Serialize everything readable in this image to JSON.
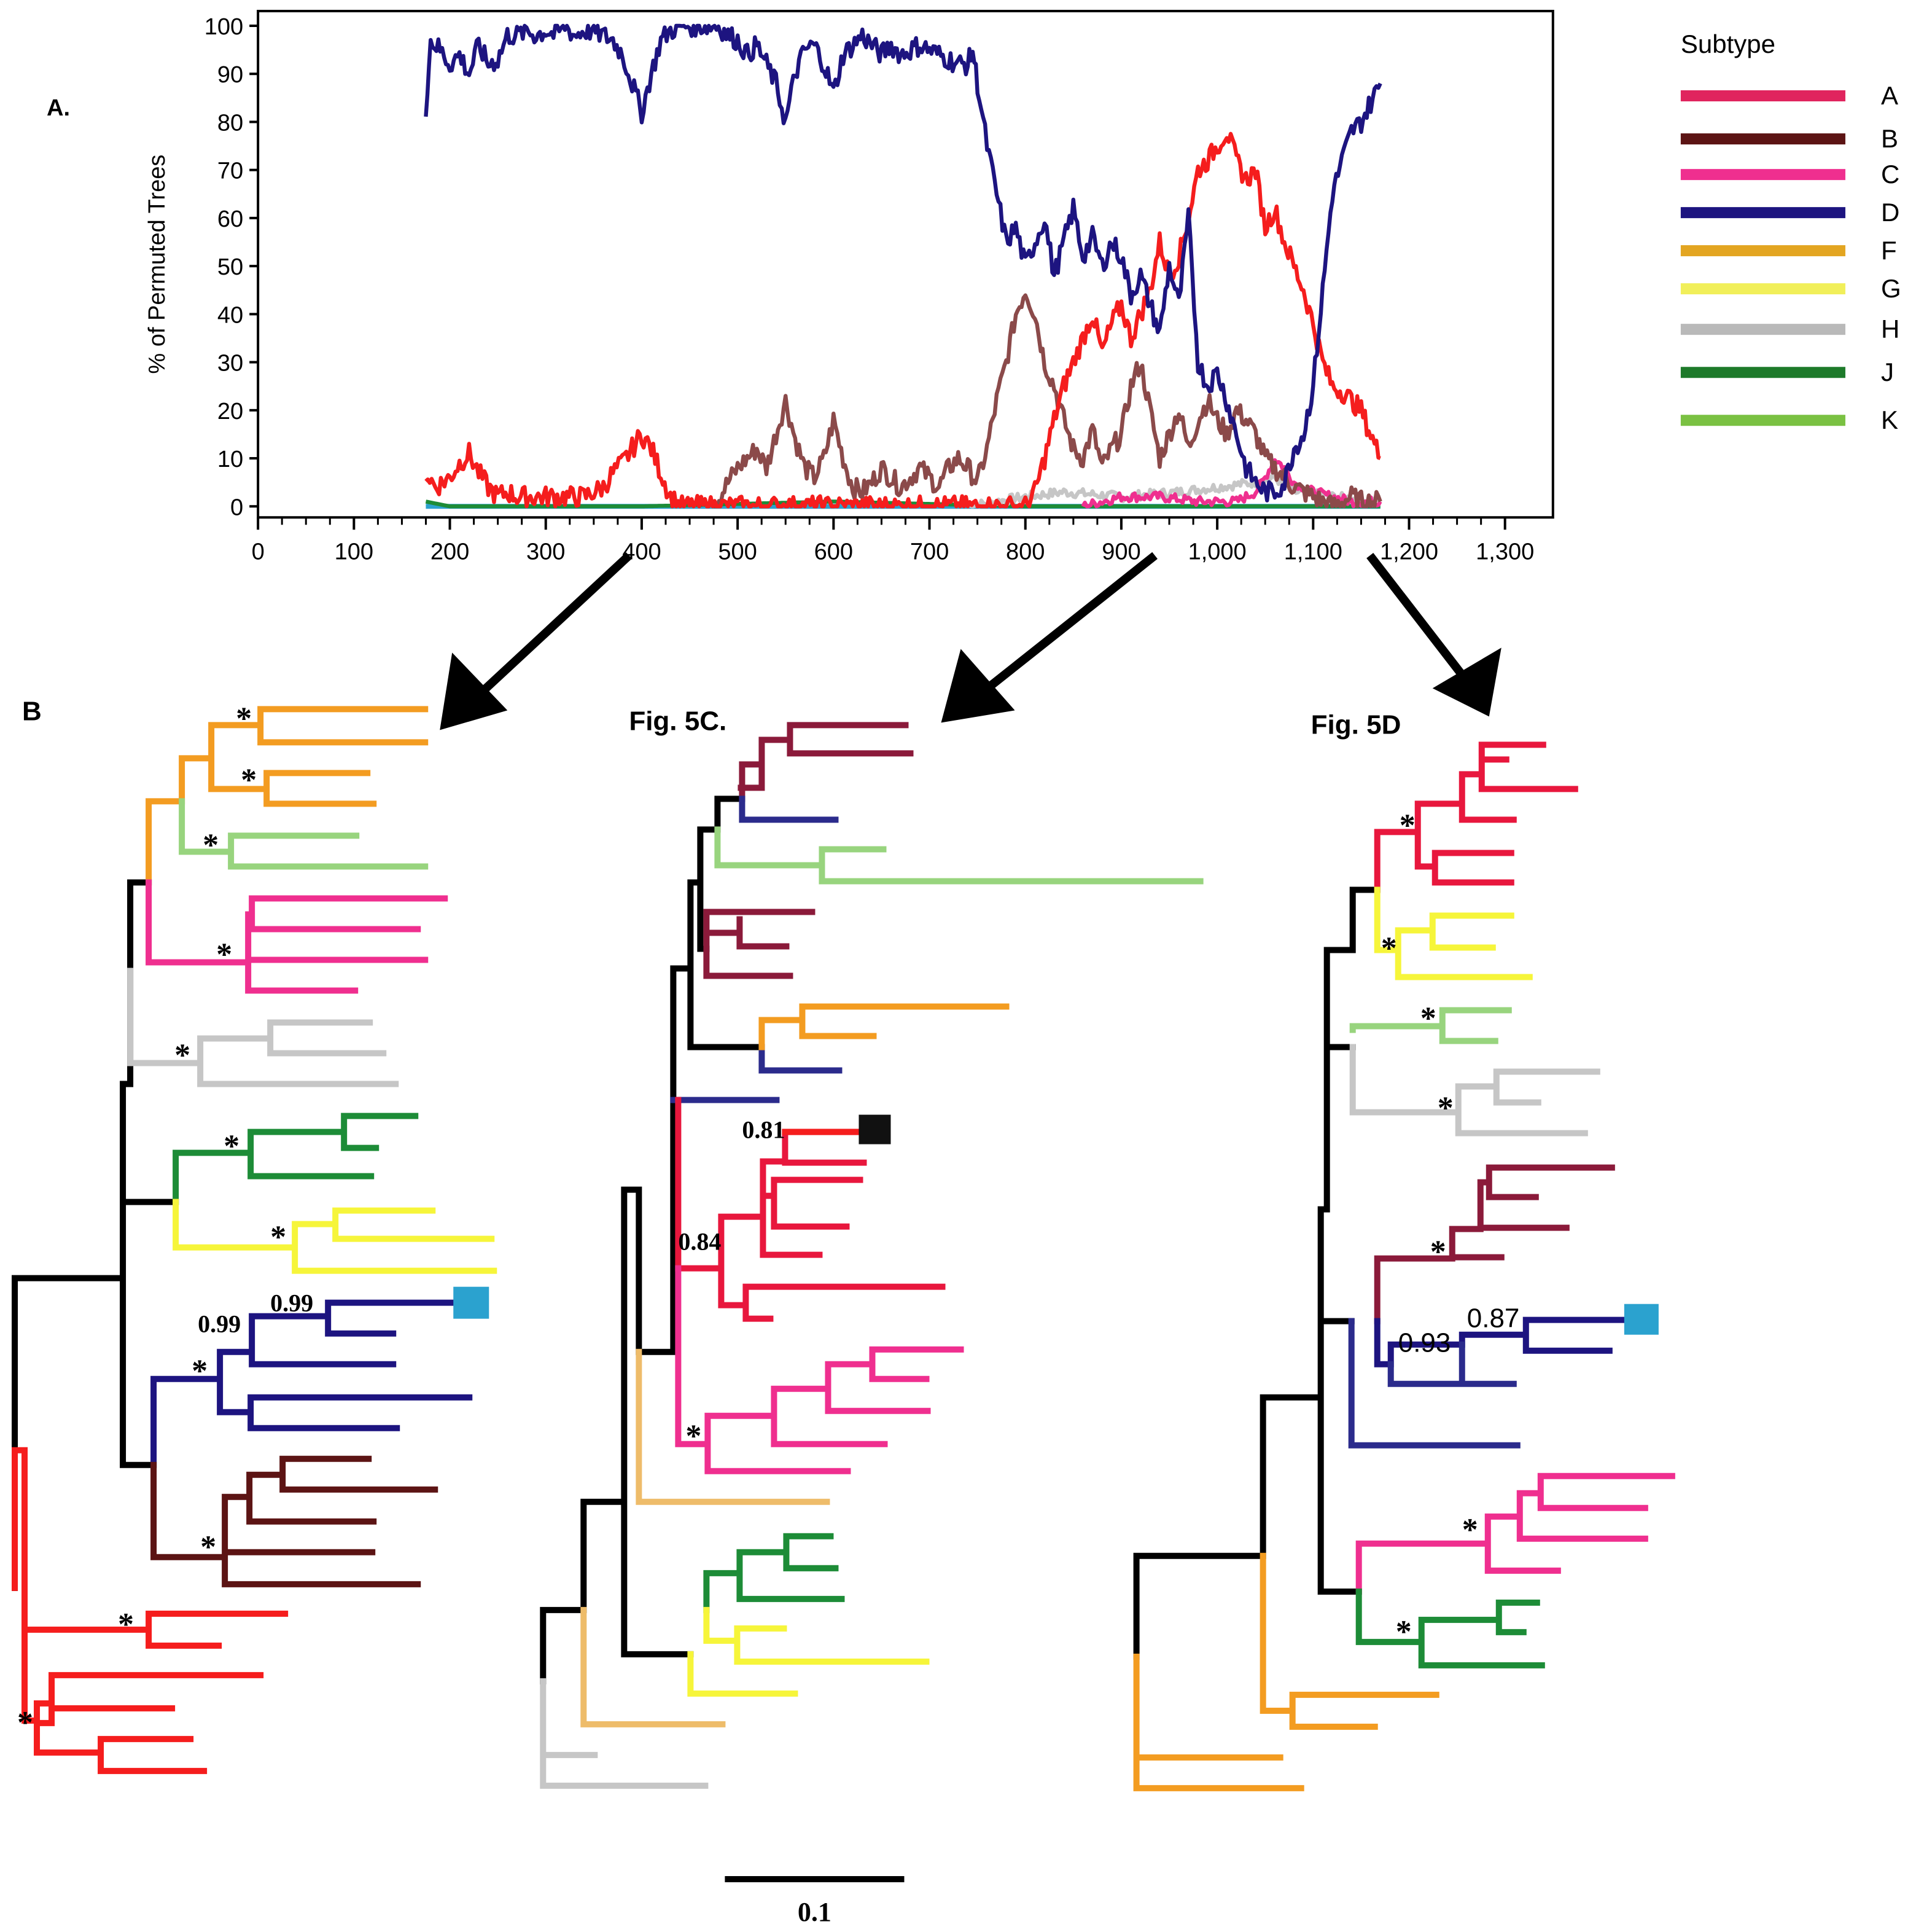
{
  "panel_labels": {
    "a": "A.",
    "b": "B",
    "c": "Fig. 5C.",
    "d": "Fig. 5D"
  },
  "colors": {
    "A": "#e8173d",
    "A_pure": "#f51d1d",
    "B": "#8b1a3a",
    "B_dark": "#5c1414",
    "B_scan": "#8b4a4a",
    "C": "#ef2f8f",
    "D": "#1d1480",
    "D_light": "#2b2b8c",
    "F": "#f39c21",
    "F_light": "#eebc6a",
    "G": "#f6f53a",
    "H": "#c6c6c6",
    "J": "#1d8c37",
    "K": "#98d47e",
    "query": "#2ba2cf",
    "black": "#000000"
  },
  "chart_data": [
    {
      "type": "line",
      "panel": "A.",
      "ylabel": "% of Permuted Trees",
      "xlabel": "",
      "xlim": [
        0,
        1350
      ],
      "ylim": [
        0,
        100
      ],
      "xticks": [
        "0",
        "100",
        "200",
        "300",
        "400",
        "500",
        "600",
        "700",
        "800",
        "900",
        "1,000",
        "1,100",
        "1,200",
        "1,300"
      ],
      "xtick_values": [
        0,
        100,
        200,
        300,
        400,
        500,
        600,
        700,
        800,
        900,
        1000,
        1100,
        1200,
        1300
      ],
      "yticks": [
        "0",
        "10",
        "20",
        "30",
        "40",
        "50",
        "60",
        "70",
        "80",
        "90",
        "100"
      ],
      "ytick_values": [
        0,
        10,
        20,
        30,
        40,
        50,
        60,
        70,
        80,
        90,
        100
      ],
      "legend_title": "Subtype",
      "legend_placement": "right",
      "legend": [
        {
          "name": "A",
          "color": "#e0245e"
        },
        {
          "name": "B",
          "color": "#5c1414"
        },
        {
          "name": "C",
          "color": "#ef2f8f"
        },
        {
          "name": "D",
          "color": "#1d1480"
        },
        {
          "name": "F",
          "color": "#e3a521"
        },
        {
          "name": "G",
          "color": "#f1ef5a"
        },
        {
          "name": "H",
          "color": "#b9b9b9"
        },
        {
          "name": "J",
          "color": "#1d7a2a"
        },
        {
          "name": "K",
          "color": "#7ac142"
        }
      ],
      "series": [
        {
          "key": "D",
          "color": "#1d1480",
          "x": [
            175,
            180,
            190,
            200,
            210,
            220,
            230,
            240,
            250,
            260,
            270,
            280,
            290,
            300,
            310,
            320,
            330,
            340,
            350,
            360,
            370,
            380,
            390,
            400,
            410,
            420,
            430,
            440,
            450,
            460,
            470,
            480,
            490,
            500,
            510,
            520,
            530,
            540,
            550,
            560,
            570,
            580,
            590,
            600,
            610,
            620,
            630,
            640,
            650,
            660,
            670,
            680,
            690,
            700,
            710,
            720,
            730,
            740,
            745,
            750,
            760,
            770,
            780,
            790,
            800,
            810,
            820,
            830,
            840,
            850,
            860,
            870,
            880,
            890,
            900,
            910,
            920,
            930,
            940,
            950,
            960,
            970,
            980,
            990,
            1000,
            1010,
            1020,
            1030,
            1040,
            1050,
            1060,
            1070,
            1080,
            1090,
            1100,
            1110,
            1120,
            1130,
            1140,
            1150,
            1160,
            1170
          ],
          "y": [
            83,
            97,
            95,
            92,
            94,
            90,
            96,
            92,
            93,
            98,
            98,
            99,
            98,
            99,
            98,
            100,
            98,
            99,
            99,
            98,
            97,
            94,
            88,
            82,
            90,
            97,
            99,
            100,
            100,
            100,
            100,
            100,
            98,
            97,
            94,
            96,
            92,
            88,
            80,
            90,
            95,
            96,
            92,
            86,
            94,
            96,
            98,
            96,
            94,
            96,
            94,
            95,
            96,
            95,
            94,
            93,
            92,
            92,
            95,
            88,
            75,
            65,
            55,
            58,
            50,
            55,
            60,
            48,
            55,
            62,
            52,
            56,
            50,
            55,
            52,
            44,
            48,
            42,
            36,
            50,
            42,
            60,
            30,
            25,
            28,
            22,
            15,
            8,
            5,
            3,
            3,
            5,
            12,
            15,
            25,
            45,
            65,
            72,
            78,
            80,
            84,
            88
          ]
        },
        {
          "key": "A",
          "color": "#f51d1d",
          "x": [
            175,
            185,
            200,
            210,
            220,
            230,
            240,
            250,
            260,
            270,
            280,
            290,
            300,
            320,
            340,
            360,
            370,
            380,
            390,
            400,
            410,
            420,
            430,
            440,
            450,
            460,
            470,
            480,
            500,
            520,
            540,
            560,
            580,
            600,
            620,
            640,
            660,
            680,
            700,
            720,
            740,
            760,
            780,
            800,
            810,
            820,
            830,
            840,
            850,
            860,
            870,
            880,
            890,
            900,
            910,
            920,
            930,
            940,
            950,
            960,
            970,
            980,
            990,
            1000,
            1010,
            1020,
            1030,
            1040,
            1050,
            1060,
            1070,
            1080,
            1090,
            1100,
            1110,
            1120,
            1130,
            1140,
            1150,
            1160,
            1170
          ],
          "y": [
            7,
            4,
            6,
            9,
            11,
            7,
            4,
            2,
            3,
            2,
            2,
            2,
            2,
            2,
            2,
            4,
            7,
            9,
            12,
            15,
            12,
            7,
            2,
            0,
            0,
            0,
            0,
            0,
            0,
            0,
            0,
            0,
            0,
            0,
            0,
            0,
            0,
            0,
            0,
            0,
            0,
            0,
            0,
            0,
            3,
            10,
            18,
            25,
            30,
            35,
            40,
            32,
            38,
            42,
            35,
            40,
            45,
            55,
            48,
            52,
            60,
            70,
            72,
            75,
            78,
            72,
            68,
            70,
            58,
            62,
            55,
            50,
            45,
            38,
            30,
            25,
            24,
            22,
            20,
            15,
            10
          ]
        },
        {
          "key": "B",
          "color": "#8b4a4a",
          "x": [
            475,
            490,
            500,
            510,
            520,
            530,
            540,
            550,
            560,
            570,
            580,
            590,
            600,
            610,
            620,
            630,
            640,
            650,
            660,
            670,
            680,
            690,
            700,
            710,
            720,
            730,
            740,
            750,
            760,
            770,
            780,
            790,
            800,
            810,
            820,
            830,
            840,
            850,
            860,
            870,
            880,
            890,
            900,
            910,
            920,
            930,
            940,
            950,
            960,
            970,
            980,
            990,
            1000,
            1010,
            1020,
            1030,
            1040,
            1050,
            1060,
            1070,
            1080,
            1090,
            1100,
            1110,
            1120,
            1130,
            1140,
            1150,
            1160,
            1170
          ],
          "y": [
            0,
            5,
            8,
            10,
            12,
            8,
            15,
            22,
            14,
            8,
            6,
            10,
            18,
            10,
            4,
            3,
            5,
            8,
            6,
            4,
            6,
            8,
            6,
            4,
            8,
            10,
            8,
            5,
            12,
            22,
            30,
            40,
            45,
            40,
            30,
            25,
            18,
            12,
            10,
            16,
            8,
            12,
            15,
            25,
            30,
            20,
            10,
            15,
            20,
            12,
            18,
            22,
            18,
            15,
            20,
            18,
            15,
            10,
            8,
            6,
            4,
            3,
            2,
            1,
            0,
            1,
            2,
            1,
            1,
            1
          ]
        },
        {
          "key": "C",
          "color": "#ef2f8f",
          "x": [
            860,
            900,
            940,
            980,
            1020,
            1040,
            1050,
            1060,
            1070,
            1080,
            1100,
            1120,
            1140,
            1170
          ],
          "y": [
            0,
            2,
            2,
            1,
            1,
            3,
            6,
            10,
            8,
            5,
            3,
            2,
            1,
            1
          ]
        },
        {
          "key": "H",
          "color": "#c6c6c6",
          "x": [
            740,
            800,
            840,
            900,
            960,
            1000,
            1040,
            1060,
            1080,
            1120,
            1170
          ],
          "y": [
            0,
            2,
            3,
            2,
            3,
            4,
            5,
            6,
            3,
            2,
            1
          ]
        },
        {
          "key": "J",
          "color": "#1d8c37",
          "x": [
            175,
            200,
            260,
            400,
            600,
            800,
            1000,
            1170
          ],
          "y": [
            1,
            0,
            0,
            0,
            1,
            0,
            0,
            0
          ]
        },
        {
          "key": "baseline",
          "color": "#2ba2cf",
          "x": [
            175,
            1170
          ],
          "y": [
            0,
            0
          ]
        }
      ]
    },
    {
      "type": "tree",
      "panel": "B",
      "node_labels": [
        "*",
        "*",
        "*",
        "*",
        "*",
        "*",
        "*",
        "0.99",
        "0.99",
        "*",
        "*",
        "*",
        "*"
      ]
    },
    {
      "type": "tree",
      "panel": "Fig. 5C.",
      "node_labels": [
        "0.81",
        "0.84",
        "*"
      ]
    },
    {
      "type": "tree",
      "panel": "Fig. 5D",
      "node_labels": [
        "*",
        "*",
        "*",
        "*",
        "*",
        "0.93",
        "0.87",
        "*",
        "*"
      ]
    }
  ],
  "scale_bar": {
    "label": "0.1"
  }
}
